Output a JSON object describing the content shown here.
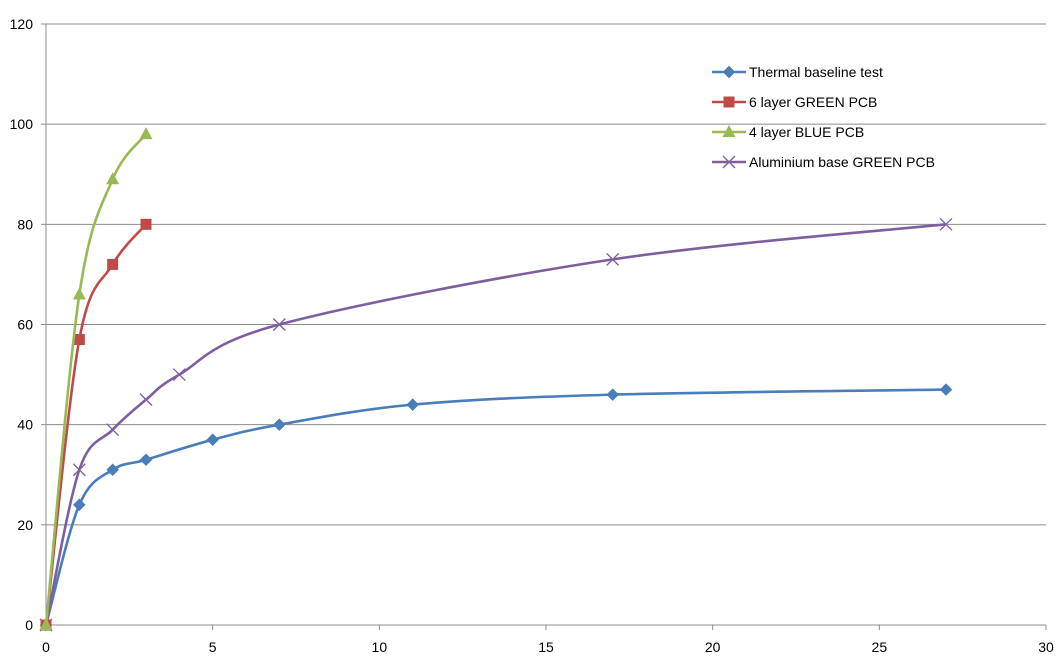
{
  "chart_data": {
    "type": "scatter",
    "title": "",
    "xlabel": "",
    "ylabel": "",
    "xlim": [
      0,
      30
    ],
    "ylim": [
      0,
      120
    ],
    "x_ticks": [
      "0",
      "5",
      "10",
      "15",
      "20",
      "25",
      "30"
    ],
    "y_ticks": [
      "0",
      "20",
      "40",
      "60",
      "80",
      "100",
      "120"
    ],
    "grid": "horizontal",
    "smooth_lines": true,
    "legend_position": "top-right",
    "series": [
      {
        "name": "Thermal baseline test",
        "color": "#4a7ebb",
        "marker": "diamond",
        "x": [
          0,
          1,
          2,
          3,
          5,
          7,
          11,
          17,
          27
        ],
        "y": [
          0,
          24,
          31,
          33,
          37,
          40,
          44,
          46,
          47
        ]
      },
      {
        "name": "6 layer GREEN PCB",
        "color": "#be4b48",
        "marker": "square",
        "x": [
          0,
          1,
          2,
          3
        ],
        "y": [
          0,
          57,
          72,
          80
        ]
      },
      {
        "name": "4 layer BLUE PCB",
        "color": "#98b954",
        "marker": "triangle",
        "x": [
          0,
          1,
          2,
          3
        ],
        "y": [
          0,
          66,
          89,
          98
        ]
      },
      {
        "name": "Aluminium base GREEN PCB",
        "color": "#7d5fa0",
        "marker": "x",
        "x": [
          0,
          1,
          2,
          3,
          4,
          7,
          17,
          27
        ],
        "y": [
          0,
          31,
          39,
          45,
          50,
          60,
          73,
          80
        ]
      }
    ]
  }
}
